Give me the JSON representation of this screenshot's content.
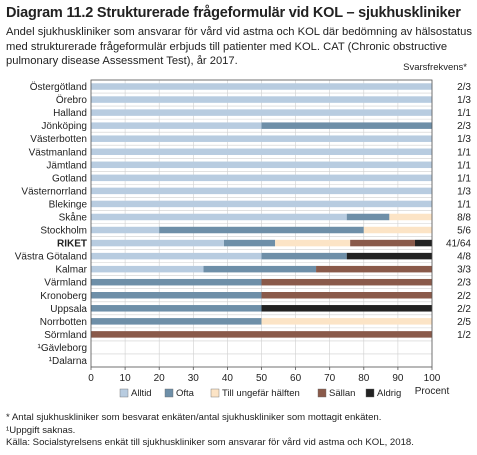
{
  "header": {
    "title": "Diagram 11.2 Strukturerade frågeformulär vid KOL – sjukhuskliniker",
    "subtitle": "Andel sjukhuskliniker som ansvarar för vård vid astma och KOL där bedömning av hälsostatus med strukturerade frågeformulär erbjuds till patienter med KOL. CAT (Chronic obstructive pulmonary disease Assessment Test), år 2017.",
    "freq_header": "Svarsfrekvens*"
  },
  "colors": {
    "Alltid": "#b8cce0",
    "Ofta": "#6e8fa8",
    "Till ungefär hälften": "#fce4c6",
    "Sällan": "#8a5a4a",
    "Aldrig": "#222222"
  },
  "chart_data": {
    "type": "bar",
    "orientation": "horizontal",
    "stacked": true,
    "xlabel": "Procent",
    "xlim": [
      0,
      100
    ],
    "xticks": [
      0,
      10,
      20,
      30,
      40,
      50,
      60,
      70,
      80,
      90,
      100
    ],
    "grid": true,
    "legend_position": "bottom",
    "categories": [
      "Östergötland",
      "Örebro",
      "Halland",
      "Jönköping",
      "Västerbotten",
      "Västmanland",
      "Jämtland",
      "Gotland",
      "Västernorrland",
      "Blekinge",
      "Skåne",
      "Stockholm",
      "RIKET",
      "Västra Götaland",
      "Kalmar",
      "Värmland",
      "Kronoberg",
      "Uppsala",
      "Norrbotten",
      "Sörmland",
      "¹Gävleborg",
      "¹Dalarna"
    ],
    "highlight_category": "RIKET",
    "response_rates": [
      "2/3",
      "1/3",
      "1/1",
      "2/3",
      "1/3",
      "1/1",
      "1/1",
      "1/1",
      "1/3",
      "1/1",
      "8/8",
      "5/6",
      "41/64",
      "4/8",
      "3/3",
      "2/3",
      "2/2",
      "2/2",
      "2/5",
      "1/2",
      "",
      ""
    ],
    "series": [
      {
        "name": "Alltid",
        "values": [
          100,
          100,
          100,
          50,
          100,
          100,
          100,
          100,
          100,
          100,
          75,
          20,
          39,
          50,
          33,
          0,
          0,
          0,
          0,
          0,
          0,
          0
        ]
      },
      {
        "name": "Ofta",
        "values": [
          0,
          0,
          0,
          50,
          0,
          0,
          0,
          0,
          0,
          0,
          12.5,
          60,
          15,
          25,
          33,
          50,
          50,
          50,
          50,
          0,
          0,
          0
        ]
      },
      {
        "name": "Till ungefär hälften",
        "values": [
          0,
          0,
          0,
          0,
          0,
          0,
          0,
          0,
          0,
          0,
          12.5,
          20,
          22,
          0,
          0,
          0,
          0,
          0,
          50,
          0,
          0,
          0
        ]
      },
      {
        "name": "Sällan",
        "values": [
          0,
          0,
          0,
          0,
          0,
          0,
          0,
          0,
          0,
          0,
          0,
          0,
          19,
          0,
          34,
          50,
          50,
          0,
          0,
          100,
          0,
          0
        ]
      },
      {
        "name": "Aldrig",
        "values": [
          0,
          0,
          0,
          0,
          0,
          0,
          0,
          0,
          0,
          0,
          0,
          0,
          5,
          25,
          0,
          0,
          0,
          50,
          0,
          0,
          0,
          0
        ]
      }
    ]
  },
  "footnotes": [
    "* Antal sjukhuskliniker som besvarat enkäten/antal sjukhuskliniker som mottagit enkäten.",
    "¹Uppgift saknas.",
    "Källa:  Socialstyrelsens enkät till sjukhuskliniker som ansvarar för vård vid astma och KOL, 2018."
  ]
}
